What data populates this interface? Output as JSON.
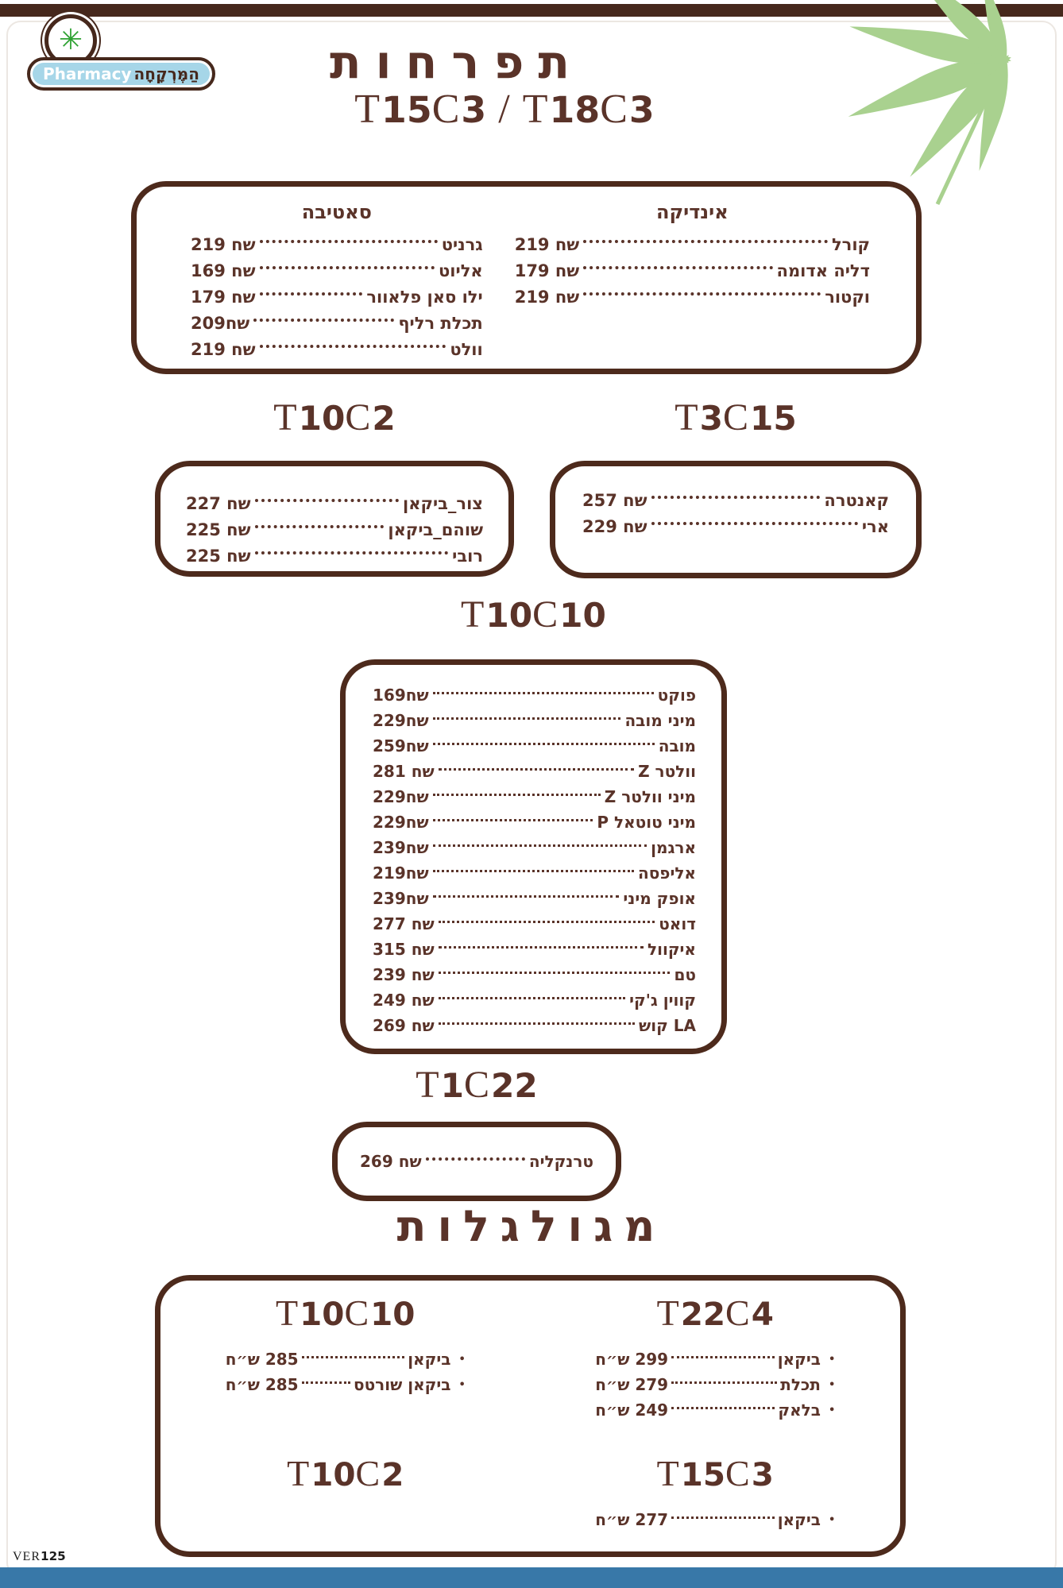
{
  "theme": {
    "text_brown": "#5a3329",
    "box_border_brown": "#4d2a1c",
    "top_bar_brown": "#46281c",
    "bottom_bar_blue": "#3878a8",
    "badge_light_blue": "#a6d6e8",
    "asterisk_green": "#2fa233",
    "leaf_green": "#a9d18f"
  },
  "logo": {
    "brand_en": "Pharmacy",
    "brand_he": "הַמֶּרְקָחָה",
    "asterisk_icon": "✳"
  },
  "page": {
    "title": "תפרחות",
    "subtitle": "T15C3 / T18C3",
    "rolled_title": "מגולגלות",
    "version": "VER125"
  },
  "flower_box": {
    "indica": {
      "header": "אינדיקה",
      "items": [
        {
          "name": "קורל",
          "price": "שח 219"
        },
        {
          "name": "דליה אדומה",
          "price": "שח 179"
        },
        {
          "name": "וקטור",
          "price": "שח 219"
        }
      ]
    },
    "sativa": {
      "header": "סאטיבה",
      "items": [
        {
          "name": "גרניט",
          "price": "שח 219"
        },
        {
          "name": "אליוט",
          "price": "שח 169"
        },
        {
          "name": "ילו סאן פלאוור",
          "price": "שח 179"
        },
        {
          "name": "תכלת רליף",
          "price": "שח209"
        },
        {
          "name": "וולט",
          "price": "שח 219"
        }
      ]
    }
  },
  "t10c2": {
    "title": "T10C2",
    "items": [
      {
        "name": "צור_ביקאן",
        "price": "שח 227"
      },
      {
        "name": "שוהם_ביקאן",
        "price": "שח 225"
      },
      {
        "name": "רובי",
        "price": "שח 225"
      }
    ]
  },
  "t3c15": {
    "title": "T3C15",
    "items": [
      {
        "name": "קאנטרה",
        "price": "שח 257"
      },
      {
        "name": "ארי",
        "price": "שח 229"
      }
    ]
  },
  "t10c10": {
    "title": "T10C10",
    "items": [
      {
        "name": "פוקט",
        "price": "שח169"
      },
      {
        "name": "מיני מובה",
        "price": "שח229"
      },
      {
        "name": "מובה",
        "price": "שח259"
      },
      {
        "name": "וולטר Z",
        "price": "שח 281"
      },
      {
        "name": "מיני וולטר Z",
        "price": "שח229"
      },
      {
        "name": "מיני טוטאל P",
        "price": "שח229"
      },
      {
        "name": "ארגמן",
        "price": "שח239"
      },
      {
        "name": "אליפסה",
        "price": "שח219"
      },
      {
        "name": "אופק מיני",
        "price": "שח239"
      },
      {
        "name": "דואט",
        "price": "שח 277"
      },
      {
        "name": "איקוול",
        "price": "שח 315"
      },
      {
        "name": "טם",
        "price": "שח 239"
      },
      {
        "name": "קווין ג'קי",
        "price": "שח 249"
      },
      {
        "name": "LA קוש",
        "price": "שח 269"
      }
    ]
  },
  "t1c22": {
    "title": "T1C22",
    "items": [
      {
        "name": "טרנקליה",
        "price": "שח 269"
      }
    ]
  },
  "rolled": {
    "left_top": {
      "title": "T10C10",
      "items": [
        {
          "name": "ביקאן",
          "price": "285 ש״ח"
        },
        {
          "name": "ביקאן שורטס",
          "price": "285 ש״ח"
        }
      ]
    },
    "left_bottom": {
      "title": "T10C2",
      "items": []
    },
    "right_top": {
      "title": "T22C4",
      "items": [
        {
          "name": "ביקאן",
          "price": "299 ש״ח"
        },
        {
          "name": "תכלת",
          "price": "279 ש״ח"
        },
        {
          "name": "בלאק",
          "price": "249 ש״ח"
        }
      ]
    },
    "right_bottom": {
      "title": "T15C3",
      "items": [
        {
          "name": "ביקאן",
          "price": "277 ש״ח"
        }
      ]
    }
  }
}
